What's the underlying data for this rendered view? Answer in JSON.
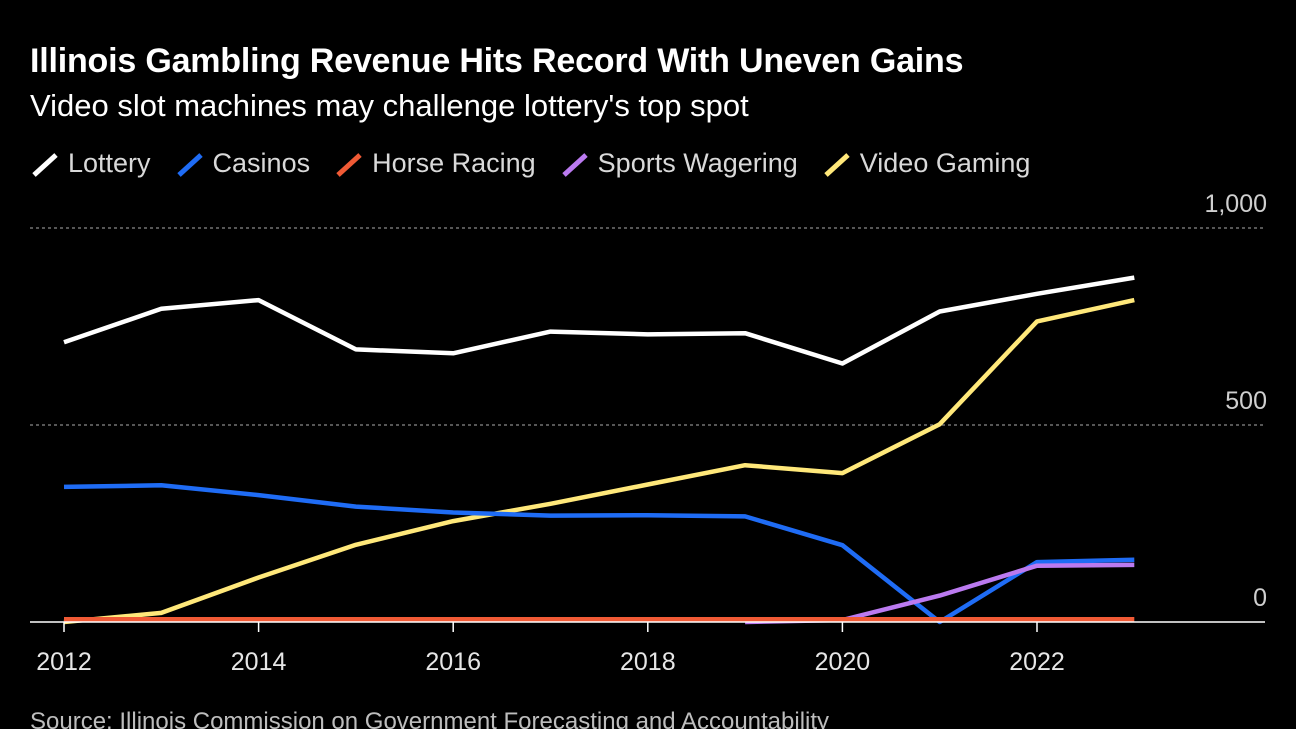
{
  "chart_data": {
    "type": "line",
    "title": "Illinois Gambling Revenue Hits Record With Uneven Gains",
    "subtitle": "Video slot machines may challenge lottery's top spot",
    "x": [
      2012,
      2013,
      2014,
      2015,
      2016,
      2017,
      2018,
      2019,
      2020,
      2021,
      2022,
      2023
    ],
    "xlim": [
      2012,
      2024.2
    ],
    "ylim": [
      0,
      1000
    ],
    "x_ticks": [
      2012,
      2014,
      2016,
      2018,
      2020,
      2022
    ],
    "y_ticks": [
      0,
      500,
      1000
    ],
    "x_tick_labels": [
      "2012",
      "2014",
      "2016",
      "2018",
      "2020",
      "2022"
    ],
    "y_tick_labels": [
      "0",
      "500",
      "1,000"
    ],
    "legend_placement": "top-left",
    "series": [
      {
        "name": "Lottery",
        "color": "#ffffff",
        "values": [
          710,
          795,
          817,
          692,
          682,
          737,
          730,
          733,
          656,
          788,
          833,
          874
        ]
      },
      {
        "name": "Casinos",
        "color": "#1f6cf5",
        "values": [
          343,
          347,
          322,
          293,
          278,
          270,
          271,
          268,
          195,
          0,
          152,
          158
        ]
      },
      {
        "name": "Horse Racing",
        "color": "#f05a35",
        "values": [
          7,
          7,
          7,
          7,
          7,
          7,
          7,
          7,
          7,
          7,
          7,
          7
        ]
      },
      {
        "name": "Sports Wagering",
        "color": "#bb7af0",
        "values": [
          null,
          null,
          null,
          null,
          null,
          null,
          null,
          0,
          5,
          67,
          143,
          145
        ]
      },
      {
        "name": "Video Gaming",
        "color": "#ffe87a",
        "values": [
          0,
          23,
          113,
          196,
          256,
          300,
          349,
          398,
          378,
          502,
          763,
          817
        ]
      }
    ],
    "source": "Source: Illinois Commission on Government Forecasting and Accountability"
  }
}
